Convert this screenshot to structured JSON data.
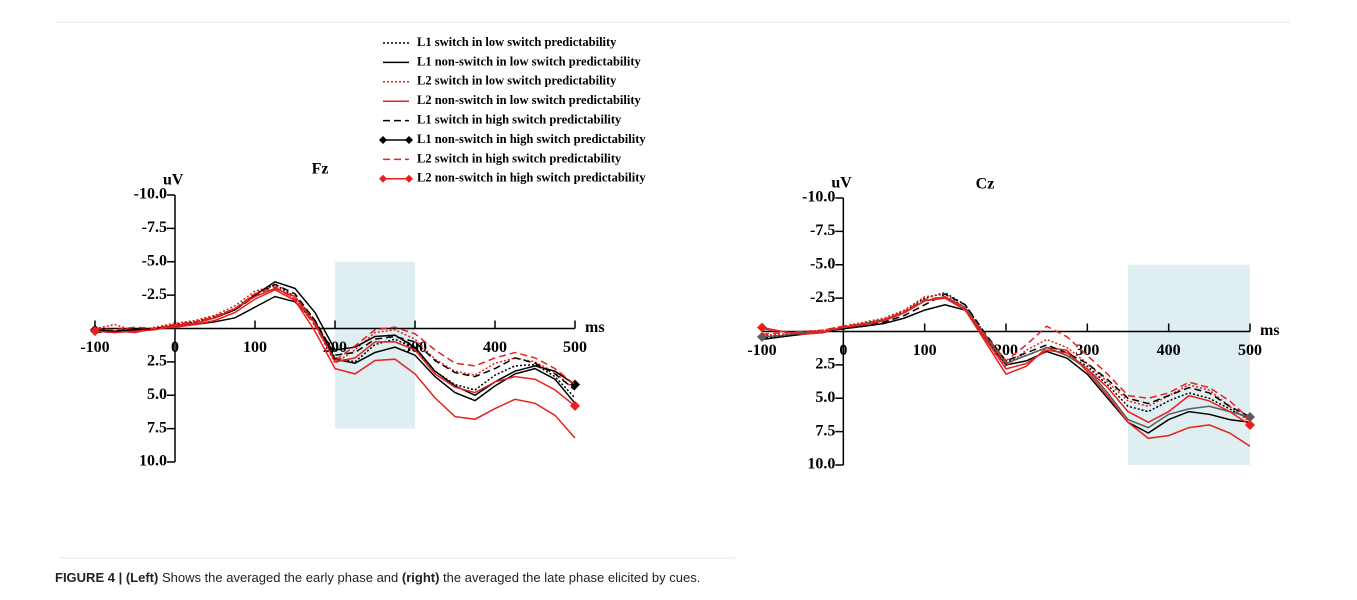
{
  "chart_data": [
    {
      "type": "line",
      "title": "Fz",
      "ylabel": "uV",
      "xlabel": "ms",
      "x": [
        -100,
        -75,
        -50,
        -25,
        0,
        25,
        50,
        75,
        100,
        125,
        150,
        175,
        200,
        225,
        250,
        275,
        300,
        325,
        350,
        375,
        400,
        425,
        450,
        475,
        500
      ],
      "xlim": [
        -100,
        500
      ],
      "xticks": [
        -100,
        0,
        100,
        200,
        300,
        400,
        500
      ],
      "ylim": [
        -10,
        10
      ],
      "y_reversed": true,
      "yticks": [
        {
          "value": -10,
          "label": "-10.0"
        },
        {
          "value": -7.5,
          "label": "-7.5"
        },
        {
          "value": -5,
          "label": "-5.0"
        },
        {
          "value": -2.5,
          "label": "-2.5"
        },
        {
          "value": 2.5,
          "label": "2.5"
        },
        {
          "value": 5,
          "label": "5.0"
        },
        {
          "value": 7.5,
          "label": "7.5"
        },
        {
          "value": 10,
          "label": "10.0"
        }
      ],
      "highlight": {
        "x": [
          200,
          300
        ],
        "y": [
          -5,
          7.5
        ],
        "color": "#dfeef0"
      },
      "legend": "top",
      "series": [
        {
          "name": "L1 switch in low switch predictability",
          "color": "#000000",
          "dash": "dotted",
          "values": [
            0,
            0.2,
            0,
            0.1,
            -0.3,
            -0.5,
            -0.9,
            -1.5,
            -2.6,
            -3.3,
            -2.4,
            -0.6,
            2.2,
            2.5,
            1.2,
            0.8,
            1.5,
            3.2,
            4.2,
            4.6,
            3.5,
            2.8,
            2.7,
            3.6,
            5.2
          ]
        },
        {
          "name": "L1 non-switch in low switch predictability",
          "color": "#000000",
          "dash": "solid",
          "values": [
            0.2,
            0.3,
            0.1,
            0,
            -0.2,
            -0.3,
            -0.5,
            -0.8,
            -1.6,
            -2.4,
            -2,
            -0.5,
            2.3,
            2.6,
            1.8,
            1.4,
            2,
            3.6,
            4.8,
            5.4,
            4.3,
            3.4,
            3,
            3.8,
            5.6
          ]
        },
        {
          "name": "L2 switch in low switch predictability",
          "color": "#e8201e",
          "dash": "dotted",
          "values": [
            0,
            -0.3,
            0.2,
            -0.1,
            -0.4,
            -0.6,
            -1,
            -1.7,
            -2.8,
            -3.2,
            -2.2,
            -0.3,
            2.6,
            1.6,
            0.3,
            0.1,
            0.8,
            2.3,
            3.2,
            3.5,
            2.6,
            2.2,
            2.5,
            3.3,
            4.6
          ]
        },
        {
          "name": "L2 non-switch in low switch predictability",
          "color": "#e8201e",
          "dash": "solid",
          "values": [
            0.1,
            0.2,
            0.3,
            0,
            -0.1,
            -0.3,
            -0.6,
            -1.2,
            -2.2,
            -2.9,
            -2.1,
            0.2,
            3,
            3.4,
            2.4,
            2.3,
            3.4,
            5.2,
            6.6,
            6.8,
            6,
            5.3,
            5.6,
            6.5,
            8.2
          ]
        },
        {
          "name": "L1 switch in high switch predictability",
          "color": "#000000",
          "dash": "dashed",
          "values": [
            0.3,
            0.2,
            0,
            0,
            -0.3,
            -0.5,
            -0.8,
            -1.4,
            -2.4,
            -3.3,
            -2.6,
            -0.6,
            2,
            1.8,
            0.8,
            0.6,
            1,
            2.4,
            3.3,
            3.6,
            3,
            2.2,
            2.6,
            3.4,
            4.6
          ]
        },
        {
          "name": "L1 non-switch in high switch predictability",
          "color": "#000000",
          "dash": "solid",
          "marker": "diamond",
          "values": [
            0.1,
            0.2,
            0.1,
            0,
            -0.2,
            -0.4,
            -0.8,
            -1.4,
            -2.5,
            -3.5,
            -3,
            -1.2,
            1.6,
            1.4,
            0.6,
            0.5,
            1.4,
            3.2,
            4.3,
            5,
            4,
            3.2,
            2.8,
            3.2,
            4.2
          ]
        },
        {
          "name": "L2 switch in high switch predictability",
          "color": "#e8201e",
          "dash": "dashed",
          "values": [
            0,
            0.1,
            -0.1,
            0,
            -0.3,
            -0.5,
            -0.9,
            -1.5,
            -2.6,
            -3.1,
            -2.2,
            -0.2,
            2.4,
            1.3,
            0.1,
            -0.1,
            0.4,
            1.6,
            2.6,
            2.8,
            2.2,
            1.8,
            2.2,
            3,
            4.2
          ]
        },
        {
          "name": "L2 non-switch in high switch predictability",
          "color": "#e8201e",
          "dash": "solid",
          "marker": "diamond",
          "values": [
            0.2,
            0.3,
            0.2,
            0.1,
            -0.2,
            -0.4,
            -0.8,
            -1.5,
            -2.4,
            -3,
            -2.4,
            -0.4,
            2.5,
            2.2,
            1,
            1,
            1.6,
            3.4,
            4.4,
            4.8,
            4,
            3.6,
            3.8,
            4.6,
            5.8
          ]
        }
      ]
    },
    {
      "type": "line",
      "title": "Cz",
      "ylabel": "uV",
      "xlabel": "ms",
      "x": [
        -100,
        -75,
        -50,
        -25,
        0,
        25,
        50,
        75,
        100,
        125,
        150,
        175,
        200,
        225,
        250,
        275,
        300,
        325,
        350,
        375,
        400,
        425,
        450,
        475,
        500
      ],
      "xlim": [
        -100,
        500
      ],
      "xticks": [
        -100,
        0,
        100,
        200,
        300,
        400,
        500
      ],
      "ylim": [
        -10,
        10
      ],
      "y_reversed": true,
      "yticks": [
        {
          "value": -10,
          "label": "-10.0"
        },
        {
          "value": -7.5,
          "label": "-7.5"
        },
        {
          "value": -5,
          "label": "-5.0"
        },
        {
          "value": -2.5,
          "label": "-2.5"
        },
        {
          "value": 2.5,
          "label": "2.5"
        },
        {
          "value": 5,
          "label": "5.0"
        },
        {
          "value": 7.5,
          "label": "7.5"
        },
        {
          "value": 10,
          "label": "10.0"
        }
      ],
      "highlight": {
        "x": [
          350,
          500
        ],
        "y": [
          -5,
          10
        ],
        "color": "#dfeef0"
      },
      "series": [
        {
          "color": "#000000",
          "dash": "dotted",
          "values": [
            0.5,
            0.3,
            0.1,
            0,
            -0.3,
            -0.6,
            -0.9,
            -1.5,
            -2.5,
            -2.9,
            -2,
            0.3,
            2.3,
            1.8,
            1.2,
            1.8,
            2.6,
            4,
            5.6,
            6,
            5.2,
            4.6,
            5,
            5.8,
            6.6
          ]
        },
        {
          "color": "#000000",
          "dash": "solid",
          "values": [
            0.6,
            0.4,
            0.2,
            0,
            -0.2,
            -0.4,
            -0.6,
            -1,
            -1.6,
            -2,
            -1.6,
            0.5,
            2.5,
            2.2,
            1.5,
            2,
            3.2,
            5,
            6.8,
            7.6,
            6.6,
            6,
            6.2,
            6.6,
            6.8
          ]
        },
        {
          "color": "#e8201e",
          "dash": "dotted",
          "values": [
            0.3,
            0.2,
            0,
            -0.1,
            -0.4,
            -0.7,
            -1,
            -1.6,
            -2.6,
            -2.8,
            -1.8,
            0.5,
            2.6,
            1.4,
            0.6,
            1.2,
            2.4,
            3.8,
            5.2,
            5.6,
            4.8,
            4,
            4.4,
            5.6,
            6.8
          ]
        },
        {
          "color": "#e8201e",
          "dash": "solid",
          "values": [
            -0.2,
            0,
            0.2,
            0.1,
            -0.3,
            -0.5,
            -0.8,
            -1.4,
            -2.3,
            -2.6,
            -1.6,
            0.8,
            3.2,
            2.6,
            1.2,
            1.4,
            3,
            4.8,
            6.8,
            8,
            7.8,
            7.2,
            7,
            7.6,
            8.6
          ]
        },
        {
          "color": "#000000",
          "dash": "dashed",
          "values": [
            0.4,
            0.3,
            0.1,
            0,
            -0.2,
            -0.4,
            -0.7,
            -1.2,
            -2,
            -2.8,
            -2,
            0.2,
            2.2,
            1.6,
            1,
            1.6,
            2.4,
            3.6,
            5,
            5.4,
            4.8,
            4.2,
            4.6,
            5.6,
            6.4
          ]
        },
        {
          "color": "#555e62",
          "dash": "solid",
          "marker": "diamond",
          "values": [
            0.4,
            0.3,
            0.1,
            0,
            -0.3,
            -0.6,
            -0.9,
            -1.4,
            -2.3,
            -2.6,
            -1.8,
            0.4,
            2.4,
            1.8,
            1.2,
            1.8,
            2.8,
            4.6,
            6.6,
            7.2,
            6.2,
            5.8,
            5.6,
            6,
            6.4
          ]
        },
        {
          "color": "#e8201e",
          "dash": "dashed",
          "values": [
            0.2,
            0.1,
            0,
            -0.1,
            -0.4,
            -0.6,
            -0.9,
            -1.5,
            -2.4,
            -2.6,
            -1.7,
            0.3,
            2.2,
            1,
            -0.4,
            0.4,
            1.8,
            3.2,
            4.8,
            5,
            4.6,
            3.8,
            4.2,
            5.2,
            6.6
          ]
        },
        {
          "color": "#e8201e",
          "dash": "solid",
          "marker": "diamond",
          "values": [
            -0.3,
            0,
            0.2,
            0,
            -0.3,
            -0.5,
            -0.8,
            -1.4,
            -2.3,
            -2.5,
            -1.6,
            0.6,
            2.8,
            2.4,
            1.4,
            1.6,
            2.8,
            4.2,
            6,
            6.8,
            6,
            4.8,
            5.2,
            6,
            7
          ]
        }
      ]
    }
  ],
  "caption": [
    "FIGURE 4 | ",
    "(Left)",
    " Shows the averaged the early phase and ",
    "(right)",
    " the averaged the late phase elicited by cues."
  ]
}
